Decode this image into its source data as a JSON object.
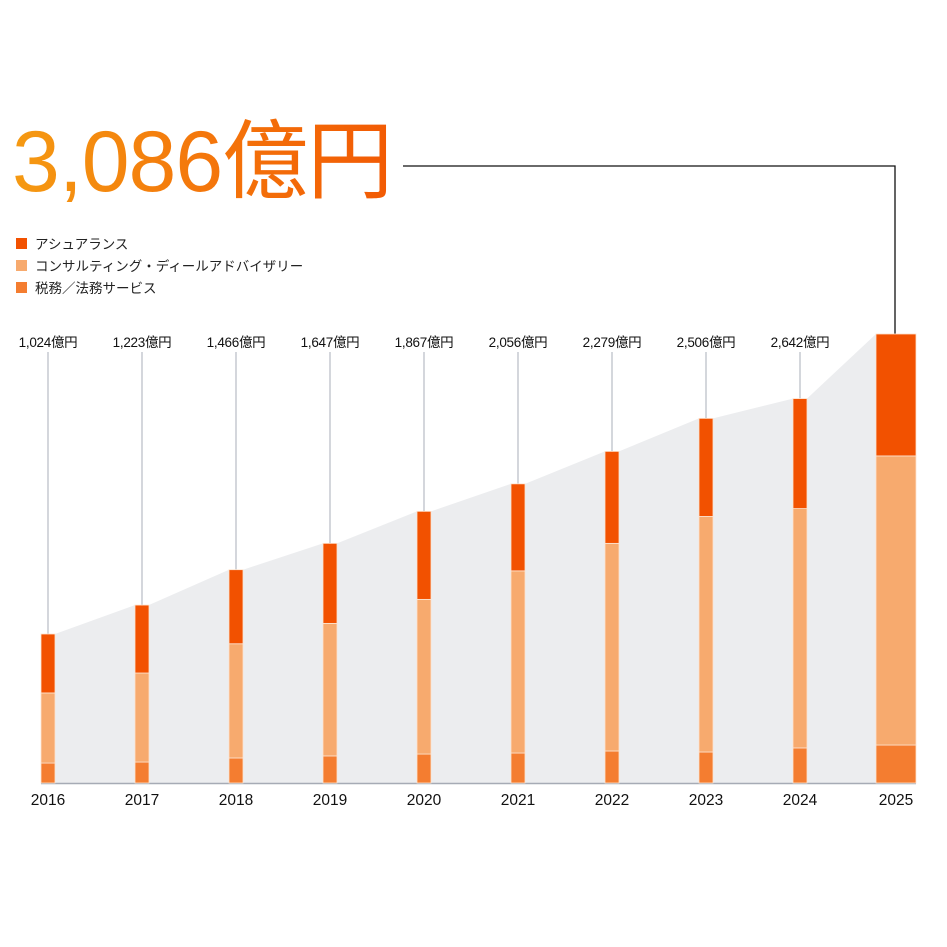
{
  "headline": {
    "value": "3,086億円"
  },
  "colors": {
    "assurance": "#f25100",
    "consulting": "#f7aa6e",
    "tax": "#f47d30",
    "area": "#ecedef",
    "leader": "#b8bcc4",
    "axis": "#a6abb5",
    "connector": "#111111"
  },
  "legend": {
    "items": [
      {
        "label": "アシュアランス",
        "color": "#f25100"
      },
      {
        "label": "コンサルティング・ディールアドバイザリー",
        "color": "#f7aa6e"
      },
      {
        "label": "税務／法務サービス",
        "color": "#f47d30"
      }
    ]
  },
  "chart_data": {
    "type": "bar",
    "stacked": true,
    "title": "3,086億円",
    "xlabel": "",
    "ylabel": "",
    "unit": "億円",
    "categories": [
      "2016",
      "2017",
      "2018",
      "2019",
      "2020",
      "2021",
      "2022",
      "2023",
      "2024",
      "2025"
    ],
    "totals": [
      1024,
      1223,
      1466,
      1647,
      1867,
      2056,
      2279,
      2506,
      2642,
      3086
    ],
    "total_labels": [
      "1,024億円",
      "1,223億円",
      "1,466億円",
      "1,647億円",
      "1,867億円",
      "2,056億円",
      "2,279億円",
      "2,506億円",
      "2,642億円",
      ""
    ],
    "series": [
      {
        "name": "税務／法務サービス",
        "values": [
          137,
          144,
          172,
          186,
          199,
          206,
          220,
          213,
          241,
          261
        ]
      },
      {
        "name": "コンサルティング・ディールアドバイザリー",
        "values": [
          482,
          612,
          785,
          911,
          1063,
          1252,
          1427,
          1619,
          1645,
          1987
        ]
      },
      {
        "name": "アシュアランス",
        "values": [
          405,
          467,
          509,
          550,
          605,
          598,
          632,
          674,
          756,
          838
        ]
      }
    ],
    "legend_position": "top-left",
    "grid": false,
    "annotations": [
      "Highlighted total 3,086億円 for 2025 with connector line"
    ]
  }
}
